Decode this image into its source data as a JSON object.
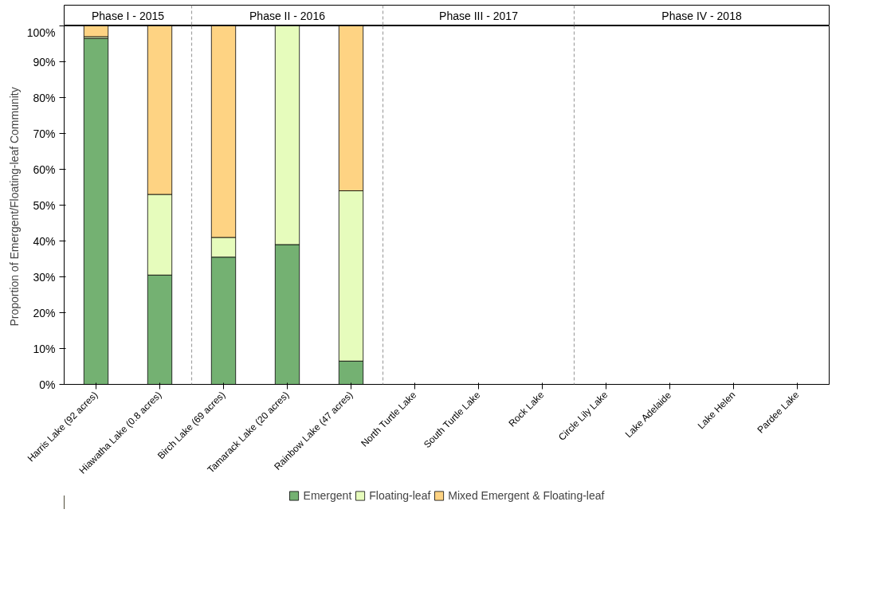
{
  "chart_data": {
    "type": "bar",
    "stacked": true,
    "ylabel": "Proportion of Emergent/Floating-leaf  Community",
    "categories": [
      "Harris Lake (92 acres)",
      "Hiawatha Lake (0.8 acres)",
      "Birch Lake (69 acres)",
      "Tamarack Lake (20 acres)",
      "Rainbow Lake (47 acres)",
      "North Turtle Lake",
      "South Turtle Lake",
      "Rock Lake",
      "Circle Lily Lake",
      "Lake Adelaide",
      "Lake Helen",
      "Pardee Lake"
    ],
    "series": [
      {
        "name": "Emergent",
        "color": "#74b172",
        "values": [
          96.5,
          30.5,
          35.5,
          39,
          6.5,
          null,
          null,
          null,
          null,
          null,
          null,
          null
        ]
      },
      {
        "name": "Floating-leaf",
        "color": "#e6fcbc",
        "values": [
          0.5,
          22.5,
          5.5,
          61,
          47.5,
          null,
          null,
          null,
          null,
          null,
          null,
          null
        ]
      },
      {
        "name": "Mixed Emergent & Floating-leaf",
        "color": "#fed383",
        "values": [
          3,
          47,
          59,
          null,
          46,
          null,
          null,
          null,
          null,
          null,
          null,
          null
        ]
      }
    ],
    "ylim": [
      0,
      100
    ],
    "yticks": [
      {
        "value": 0,
        "label": "0%"
      },
      {
        "value": 10,
        "label": "10%"
      },
      {
        "value": 20,
        "label": "20%"
      },
      {
        "value": 30,
        "label": "30%"
      },
      {
        "value": 40,
        "label": "40%"
      },
      {
        "value": 50,
        "label": "50%"
      },
      {
        "value": 60,
        "label": "60%"
      },
      {
        "value": 70,
        "label": "70%"
      },
      {
        "value": 80,
        "label": "80%"
      },
      {
        "value": 90,
        "label": "90%"
      },
      {
        "value": 100,
        "label": "100%"
      }
    ],
    "annotations": [
      "Phase I - 2015",
      "Phase II - 2016",
      "Phase III - 2017",
      "Phase IV - 2018"
    ],
    "grid": false,
    "legend": "bottom"
  }
}
